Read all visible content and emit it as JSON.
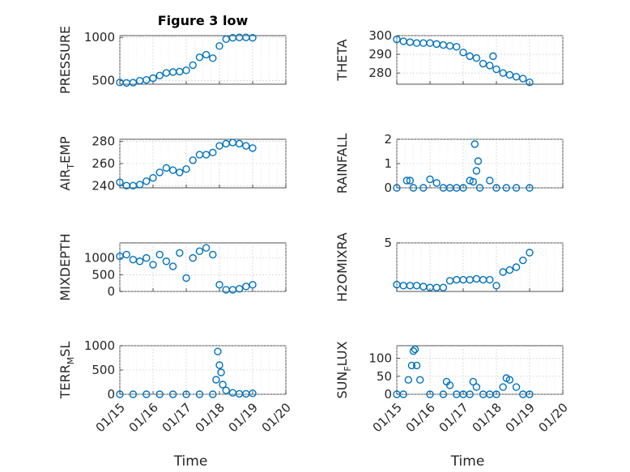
{
  "figure_title": "Figure 3 low",
  "colors": {
    "series": "#0072bd",
    "axis": "#262626",
    "grid": "#c8c8c8"
  },
  "chart_data": [
    {
      "type": "scatter",
      "ylabel": "PRESSURE",
      "xlabel": "",
      "title": "Figure 3 low",
      "xlim": [
        "01/15",
        "01/20"
      ],
      "ylim": [
        460,
        1020
      ],
      "yticks": [
        500,
        1000
      ],
      "xtick_labels_shown": false,
      "grid": true,
      "series": [
        {
          "x": [
            15.0,
            15.2,
            15.4,
            15.6,
            15.8,
            16.0,
            16.2,
            16.4,
            16.6,
            16.8,
            17.0,
            17.2,
            17.4,
            17.6,
            17.8,
            18.0,
            18.2,
            18.4,
            18.6,
            18.8,
            19.0
          ],
          "y": [
            480,
            475,
            478,
            500,
            510,
            530,
            560,
            590,
            600,
            605,
            620,
            680,
            770,
            800,
            760,
            900,
            980,
            995,
            1000,
            1000,
            995
          ]
        }
      ]
    },
    {
      "type": "scatter",
      "ylabel": "THETA",
      "xlabel": "",
      "xlim": [
        "01/15",
        "01/20"
      ],
      "ylim": [
        274,
        300
      ],
      "yticks": [
        280,
        290,
        300
      ],
      "xtick_labels_shown": false,
      "grid": true,
      "series": [
        {
          "x": [
            15.0,
            15.2,
            15.4,
            15.6,
            15.8,
            16.0,
            16.2,
            16.4,
            16.6,
            16.8,
            17.0,
            17.2,
            17.4,
            17.6,
            17.8,
            17.9,
            18.0,
            18.2,
            18.4,
            18.6,
            18.8,
            19.0
          ],
          "y": [
            298,
            297,
            296.5,
            296,
            296,
            296,
            295.5,
            295,
            294.5,
            294,
            291,
            289,
            288,
            285,
            284,
            289,
            282,
            280,
            279,
            278,
            277,
            275
          ]
        }
      ]
    },
    {
      "type": "scatter",
      "ylabel": "AIR_TEMP",
      "xlabel": "",
      "xlim": [
        "01/15",
        "01/20"
      ],
      "ylim": [
        238,
        282
      ],
      "yticks": [
        240,
        260,
        280
      ],
      "xtick_labels_shown": false,
      "grid": true,
      "series": [
        {
          "x": [
            15.0,
            15.2,
            15.4,
            15.6,
            15.8,
            16.0,
            16.2,
            16.4,
            16.6,
            16.8,
            17.0,
            17.2,
            17.4,
            17.6,
            17.8,
            18.0,
            18.2,
            18.4,
            18.6,
            18.8,
            19.0
          ],
          "y": [
            243,
            240,
            240,
            241,
            244,
            247,
            252,
            256,
            254,
            252,
            255,
            263,
            268,
            268,
            270,
            276,
            278,
            279,
            278,
            276,
            274
          ]
        }
      ]
    },
    {
      "type": "scatter",
      "ylabel": "RAINFALL",
      "xlabel": "",
      "xlim": [
        "01/15",
        "01/20"
      ],
      "ylim": [
        0,
        2
      ],
      "yticks": [
        0,
        1,
        2
      ],
      "xtick_labels_shown": false,
      "grid": true,
      "series": [
        {
          "x": [
            15.0,
            15.3,
            15.4,
            15.5,
            15.8,
            16.0,
            16.2,
            16.4,
            16.6,
            16.8,
            17.0,
            17.2,
            17.3,
            17.35,
            17.4,
            17.45,
            17.5,
            17.8,
            18.0,
            18.3,
            18.6,
            19.0
          ],
          "y": [
            0,
            0.3,
            0.3,
            0,
            0,
            0.35,
            0.2,
            0,
            0,
            0,
            0,
            0.3,
            0.25,
            1.8,
            0.7,
            1.1,
            0,
            0.3,
            0,
            0,
            0,
            0
          ]
        }
      ]
    },
    {
      "type": "scatter",
      "ylabel": "MIXDEPTH",
      "xlabel": "",
      "xlim": [
        "01/15",
        "01/20"
      ],
      "ylim": [
        0,
        1450
      ],
      "yticks": [
        0,
        500,
        1000
      ],
      "xtick_labels_shown": false,
      "grid": true,
      "series": [
        {
          "x": [
            15.0,
            15.2,
            15.4,
            15.6,
            15.8,
            16.0,
            16.2,
            16.4,
            16.6,
            16.8,
            17.0,
            17.2,
            17.4,
            17.6,
            17.8,
            18.0,
            18.2,
            18.4,
            18.6,
            18.8,
            19.0
          ],
          "y": [
            1050,
            1100,
            950,
            900,
            1000,
            800,
            1100,
            900,
            750,
            1150,
            400,
            1000,
            1200,
            1300,
            1100,
            200,
            50,
            50,
            80,
            150,
            200
          ]
        }
      ]
    },
    {
      "type": "scatter",
      "ylabel": "H2OMIXRA",
      "xlabel": "",
      "xlim": [
        "01/15",
        "01/20"
      ],
      "ylim": [
        0,
        5
      ],
      "yticks": [
        5
      ],
      "xtick_labels_shown": false,
      "grid": true,
      "series": [
        {
          "x": [
            15.0,
            15.2,
            15.4,
            15.6,
            15.8,
            16.0,
            16.2,
            16.4,
            16.6,
            16.8,
            17.0,
            17.2,
            17.4,
            17.6,
            17.8,
            18.0,
            18.2,
            18.4,
            18.6,
            18.8,
            19.0
          ],
          "y": [
            0.7,
            0.6,
            0.6,
            0.6,
            0.5,
            0.4,
            0.4,
            0.4,
            1.1,
            1.2,
            1.2,
            1.2,
            1.3,
            1.2,
            1.2,
            0.6,
            2.0,
            2.2,
            2.5,
            3.2,
            4.0
          ]
        }
      ]
    },
    {
      "type": "scatter",
      "ylabel": "TERR_MSL",
      "xlabel": "Time",
      "xlim": [
        "01/15",
        "01/20"
      ],
      "ylim": [
        0,
        1000
      ],
      "yticks": [
        0,
        500,
        1000
      ],
      "grid": true,
      "xtick_labels": [
        "01/15",
        "01/16",
        "01/17",
        "01/18",
        "01/19",
        "01/20"
      ],
      "series": [
        {
          "x": [
            15.0,
            15.4,
            15.8,
            16.2,
            16.6,
            17.0,
            17.4,
            17.8,
            17.9,
            17.95,
            18.0,
            18.05,
            18.1,
            18.2,
            18.4,
            18.6,
            18.8,
            19.0
          ],
          "y": [
            0,
            0,
            0,
            0,
            0,
            0,
            0,
            0,
            300,
            880,
            600,
            450,
            200,
            80,
            30,
            10,
            10,
            20
          ]
        }
      ]
    },
    {
      "type": "scatter",
      "ylabel": "SUN_FLUX",
      "xlabel": "Time",
      "xlim": [
        "01/15",
        "01/20"
      ],
      "ylim": [
        0,
        135
      ],
      "yticks": [
        0,
        50,
        100
      ],
      "grid": true,
      "xtick_labels": [
        "01/15",
        "01/16",
        "01/17",
        "01/18",
        "01/19",
        "01/20"
      ],
      "series": [
        {
          "x": [
            15.0,
            15.2,
            15.35,
            15.45,
            15.5,
            15.55,
            15.6,
            15.7,
            16.0,
            16.4,
            16.5,
            16.6,
            16.8,
            17.0,
            17.2,
            17.3,
            17.4,
            17.6,
            17.8,
            18.0,
            18.2,
            18.3,
            18.4,
            18.6,
            18.8,
            19.0
          ],
          "y": [
            0,
            0,
            40,
            80,
            120,
            125,
            80,
            40,
            0,
            0,
            35,
            25,
            0,
            0,
            0,
            35,
            20,
            0,
            0,
            0,
            20,
            45,
            40,
            20,
            0,
            0
          ]
        }
      ]
    }
  ]
}
